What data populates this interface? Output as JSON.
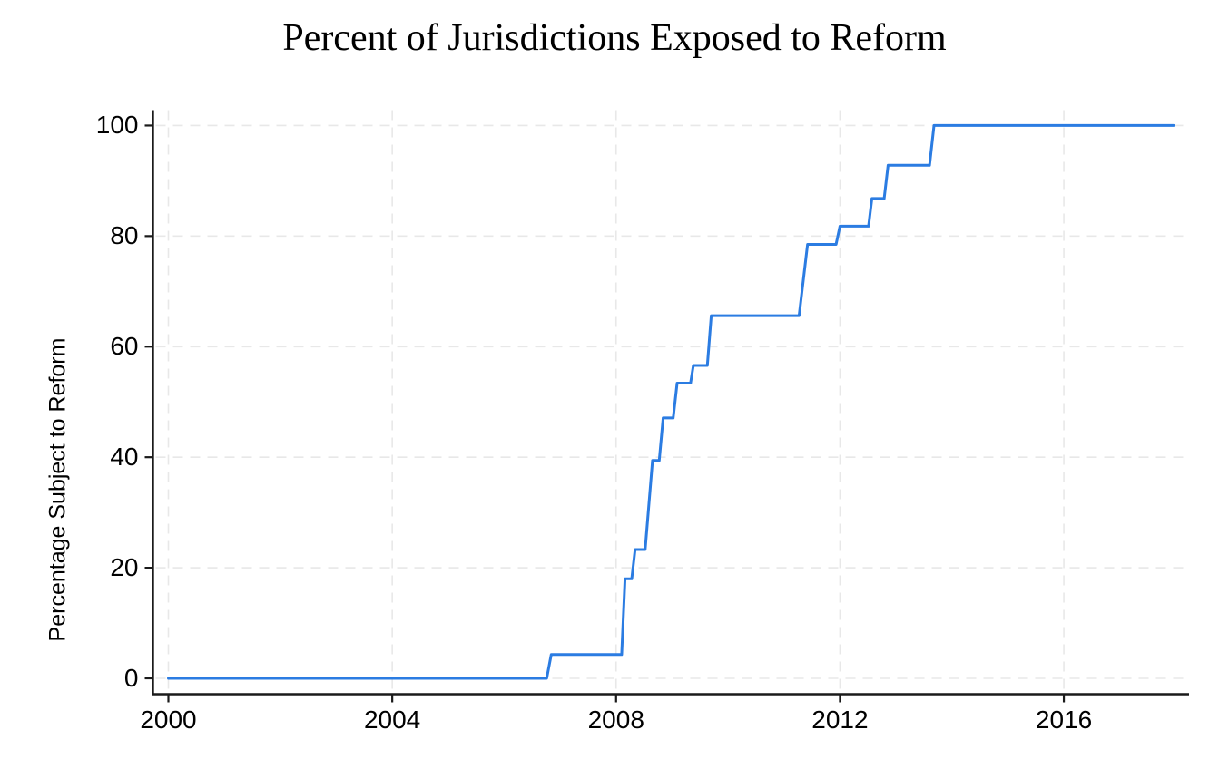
{
  "page": {
    "background": "#ffffff"
  },
  "chart": {
    "title": "Percent of Jurisdictions Exposed to Reform",
    "y_axis_label": "Percentage Subject to Reform",
    "colors": {
      "line": "#2b7ce2",
      "grid": "#e8e8e8",
      "axis": "#1a1a1a",
      "text": "#000000"
    }
  },
  "chart_data": {
    "type": "line",
    "subtype": "step",
    "title": "Percent of Jurisdictions Exposed to Reform",
    "xlabel": "",
    "ylabel": "Percentage Subject to Reform",
    "x_ticks": [
      2000,
      2004,
      2008,
      2012,
      2016
    ],
    "y_ticks": [
      0,
      20,
      40,
      60,
      80,
      100
    ],
    "xlim": [
      1999.7,
      2018.2
    ],
    "ylim": [
      0,
      100
    ],
    "grid": "dashed light-gray horizontal and vertical gridlines at every tick",
    "legend_position": "none",
    "series": [
      {
        "name": "percent-exposed-to-reform",
        "color": "#2b7ce2",
        "points": [
          [
            2000.0,
            0.0
          ],
          [
            2006.76,
            0.0
          ],
          [
            2006.84,
            4.3
          ],
          [
            2008.1,
            4.3
          ],
          [
            2008.16,
            18.0
          ],
          [
            2008.28,
            18.0
          ],
          [
            2008.34,
            23.3
          ],
          [
            2008.52,
            23.3
          ],
          [
            2008.65,
            39.4
          ],
          [
            2008.77,
            39.4
          ],
          [
            2008.84,
            47.1
          ],
          [
            2009.02,
            47.1
          ],
          [
            2009.09,
            53.4
          ],
          [
            2009.33,
            53.4
          ],
          [
            2009.38,
            56.6
          ],
          [
            2009.63,
            56.6
          ],
          [
            2009.7,
            65.6
          ],
          [
            2011.27,
            65.6
          ],
          [
            2011.42,
            78.5
          ],
          [
            2011.93,
            78.5
          ],
          [
            2012.0,
            81.8
          ],
          [
            2012.51,
            81.8
          ],
          [
            2012.57,
            86.8
          ],
          [
            2012.79,
            86.8
          ],
          [
            2012.86,
            92.8
          ],
          [
            2013.6,
            92.8
          ],
          [
            2013.68,
            100.0
          ],
          [
            2017.96,
            100.0
          ]
        ]
      }
    ]
  }
}
